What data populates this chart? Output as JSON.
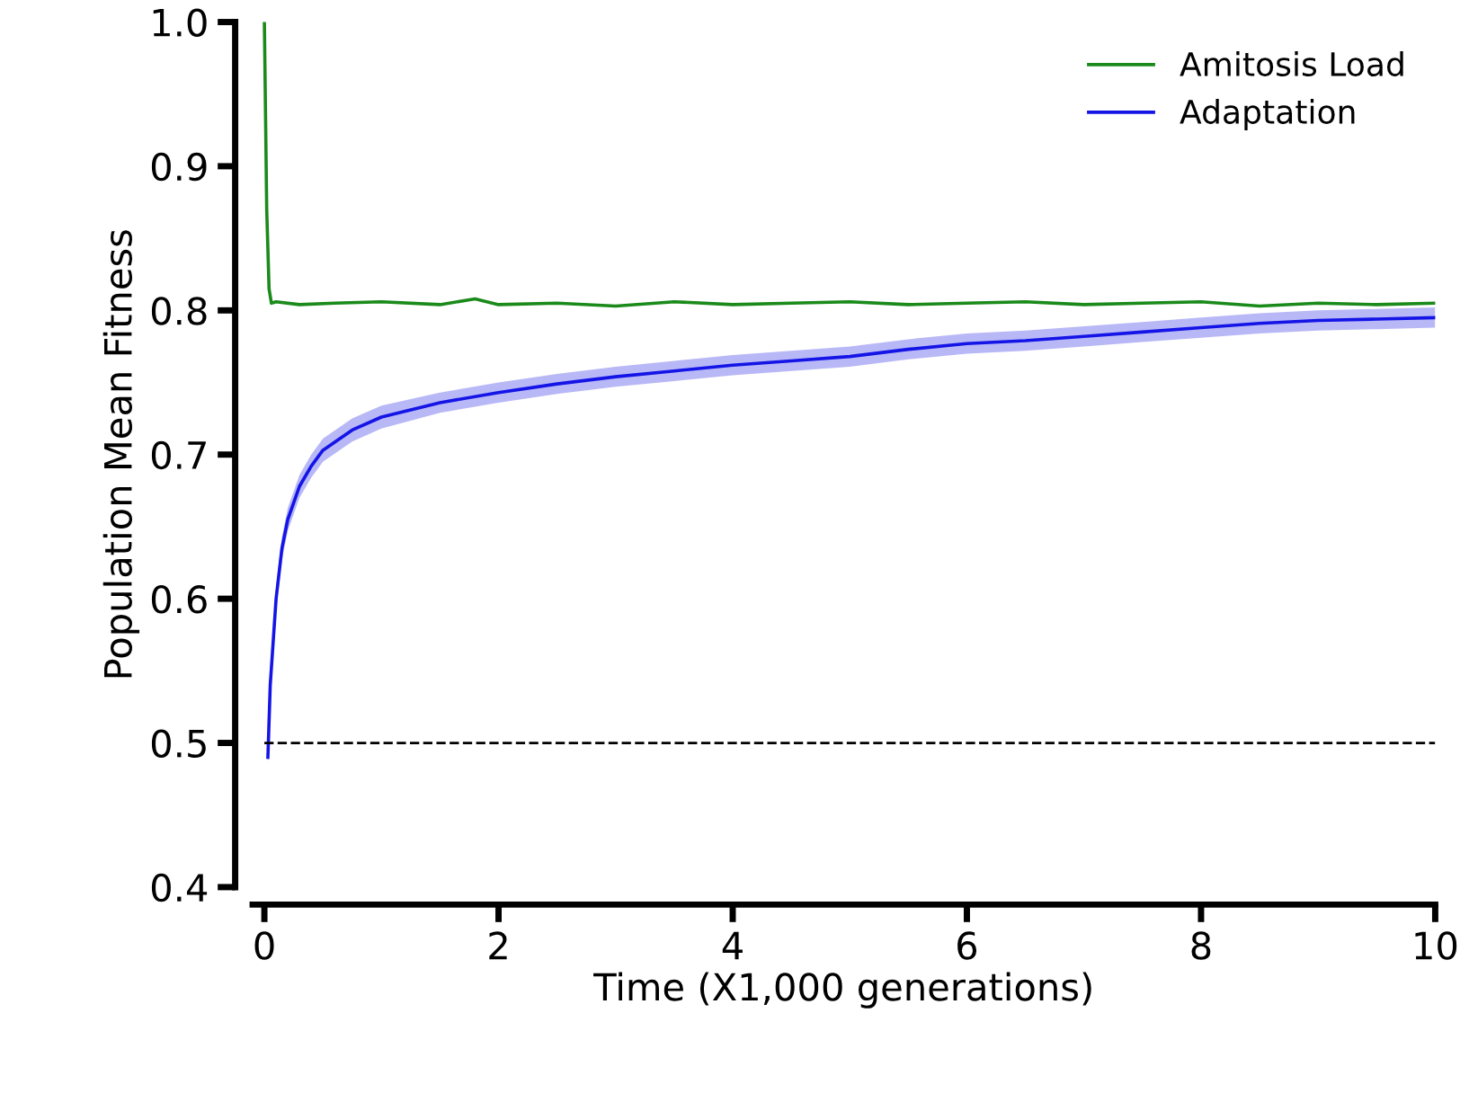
{
  "chart_data": {
    "type": "line",
    "xlabel": "Time (X1,000 generations)",
    "ylabel": "Population Mean Fitness",
    "xlim": [
      -0.1,
      10
    ],
    "ylim": [
      0.4,
      1.0
    ],
    "xticks": [
      0,
      2,
      4,
      6,
      8,
      10
    ],
    "yticks": [
      {
        "value": 0.4,
        "label": "0.4"
      },
      {
        "value": 0.5,
        "label": "0.5"
      },
      {
        "value": 0.6,
        "label": "0.6"
      },
      {
        "value": 0.7,
        "label": "0.7"
      },
      {
        "value": 0.8,
        "label": "0.8"
      },
      {
        "value": 0.9,
        "label": "0.9"
      },
      {
        "value": 1.0,
        "label": "1.0"
      }
    ],
    "series": [
      {
        "name": "Amitosis Load",
        "color": "#1a8a1a",
        "x": [
          0,
          0.02,
          0.04,
          0.06,
          0.1,
          0.3,
          0.6,
          1,
          1.5,
          1.8,
          2,
          2.5,
          3,
          3.5,
          4,
          4.5,
          5,
          5.5,
          6,
          6.5,
          7,
          7.5,
          8,
          8.5,
          9,
          9.5,
          10
        ],
        "values": [
          1.0,
          0.87,
          0.815,
          0.805,
          0.806,
          0.804,
          0.805,
          0.806,
          0.804,
          0.808,
          0.804,
          0.805,
          0.803,
          0.806,
          0.804,
          0.805,
          0.806,
          0.804,
          0.805,
          0.806,
          0.804,
          0.805,
          0.806,
          0.803,
          0.805,
          0.804,
          0.805
        ]
      },
      {
        "name": "Adaptation",
        "color": "#1414e6",
        "x": [
          0.03,
          0.05,
          0.1,
          0.15,
          0.2,
          0.3,
          0.4,
          0.5,
          0.75,
          1,
          1.5,
          2,
          2.5,
          3,
          3.5,
          4,
          4.5,
          5,
          5.5,
          6,
          6.5,
          7,
          7.5,
          8,
          8.5,
          9,
          9.5,
          10
        ],
        "values": [
          0.49,
          0.54,
          0.6,
          0.635,
          0.655,
          0.678,
          0.692,
          0.703,
          0.717,
          0.726,
          0.736,
          0.743,
          0.749,
          0.754,
          0.758,
          0.762,
          0.765,
          0.768,
          0.773,
          0.777,
          0.779,
          0.782,
          0.785,
          0.788,
          0.791,
          0.793,
          0.794,
          0.795
        ],
        "lower": [
          0.485,
          0.532,
          0.592,
          0.627,
          0.647,
          0.67,
          0.684,
          0.695,
          0.709,
          0.718,
          0.729,
          0.736,
          0.742,
          0.747,
          0.751,
          0.755,
          0.758,
          0.761,
          0.766,
          0.77,
          0.772,
          0.775,
          0.778,
          0.781,
          0.784,
          0.786,
          0.787,
          0.788
        ],
        "upper": [
          0.495,
          0.548,
          0.608,
          0.643,
          0.663,
          0.686,
          0.7,
          0.711,
          0.725,
          0.734,
          0.743,
          0.75,
          0.756,
          0.761,
          0.765,
          0.769,
          0.772,
          0.775,
          0.78,
          0.784,
          0.786,
          0.789,
          0.792,
          0.795,
          0.798,
          0.8,
          0.801,
          0.802
        ]
      }
    ],
    "ref_lines": [
      {
        "axis": "y",
        "value": 0.5,
        "color": "#000000",
        "line_style": "dashed"
      }
    ],
    "legend": "top right",
    "grid": false
  }
}
